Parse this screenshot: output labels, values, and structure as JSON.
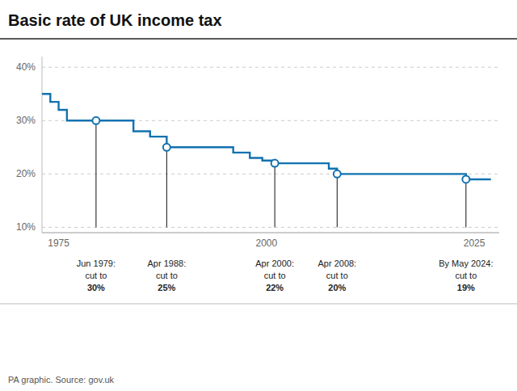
{
  "chart_data": {
    "type": "line",
    "title": "Basic rate of UK income tax",
    "source": "PA graphic. Source: gov.uk",
    "xlim": [
      1973,
      2028
    ],
    "ylim": [
      9,
      42
    ],
    "xticks": [
      1975,
      2000,
      2025
    ],
    "yticks": [
      {
        "value": 10,
        "label": "10%"
      },
      {
        "value": 20,
        "label": "20%"
      },
      {
        "value": 30,
        "label": "30%"
      },
      {
        "value": 40,
        "label": "40%"
      }
    ],
    "grid": true,
    "series": [
      {
        "type": "line",
        "color": "#1272b0",
        "x": [
          1973,
          1974,
          1974,
          1975,
          1975,
          1976,
          1976,
          1979.5,
          1984,
          1984,
          1986,
          1986,
          1988,
          1988,
          1993,
          1996,
          1996,
          1998,
          1998,
          1999.5,
          1999.5,
          2001,
          2001,
          2007,
          2007.5,
          2007.5,
          2008.5,
          2008.5,
          2023,
          2024,
          2024,
          2027
        ],
        "values": [
          35,
          35,
          33.5,
          33.5,
          32,
          32,
          30,
          30,
          30,
          28,
          28,
          27,
          27,
          25,
          25,
          25,
          24,
          24,
          23,
          23,
          22.5,
          22.5,
          22,
          22,
          22,
          21,
          21,
          20,
          20,
          20,
          19,
          19
        ]
      },
      {
        "type": "scatter",
        "marker": "open-circle",
        "color": "#1272b0",
        "x": [
          1979.5,
          1988,
          2001,
          2008.5,
          2024
        ],
        "values": [
          30,
          25,
          22,
          20,
          19
        ]
      }
    ],
    "drop_lines": {
      "color": "#111111",
      "from": 10,
      "x": [
        1979.5,
        1988,
        2001,
        2008.5,
        2024
      ],
      "values": [
        30,
        25,
        22,
        20,
        19
      ]
    },
    "annotations": [
      {
        "x": 1979.5,
        "lines": [
          "Jun 1979:",
          "cut to",
          "30%"
        ]
      },
      {
        "x": 1988,
        "lines": [
          "Apr 1988:",
          "cut to",
          "25%"
        ]
      },
      {
        "x": 2001,
        "lines": [
          "Apr 2000:",
          "cut to",
          "22%"
        ]
      },
      {
        "x": 2008.5,
        "lines": [
          "Apr 2008:",
          "cut to",
          "20%"
        ]
      },
      {
        "x": 2024,
        "lines": [
          "By May 2024:",
          "cut to",
          "19%"
        ]
      }
    ]
  }
}
